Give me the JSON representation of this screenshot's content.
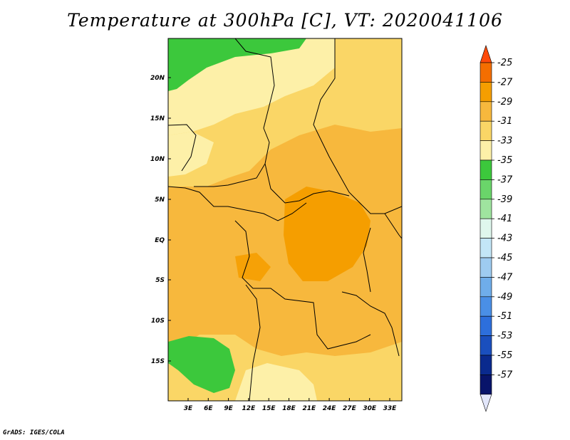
{
  "title": "Temperature at 300hPa [C], VT: 2020041106",
  "credit": "GrADS: IGES/COLA",
  "map": {
    "lat_labels": [
      "20N",
      "15N",
      "10N",
      "5N",
      "EQ",
      "5S",
      "10S",
      "15S"
    ],
    "lon_labels": [
      "3E",
      "6E",
      "9E",
      "12E",
      "15E",
      "18E",
      "21E",
      "24E",
      "27E",
      "30E",
      "33E"
    ]
  },
  "colorbar": {
    "labels": [
      "-25",
      "-27",
      "-29",
      "-31",
      "-33",
      "-35",
      "-37",
      "-39",
      "-41",
      "-43",
      "-45",
      "-47",
      "-49",
      "-51",
      "-53",
      "-55",
      "-57"
    ],
    "colors": [
      "#ff4a0a",
      "#f46e00",
      "#f59e00",
      "#f7b83d",
      "#fad666",
      "#fdf0a8",
      "#3cc83c",
      "#6ad56a",
      "#9fe49f",
      "#dff7ed",
      "#c3e6f7",
      "#9ecbf0",
      "#6fadea",
      "#4a8fe6",
      "#2d6fdc",
      "#1a4fbe",
      "#0a2a8e",
      "#08146a",
      "#e2e6fa"
    ]
  }
}
